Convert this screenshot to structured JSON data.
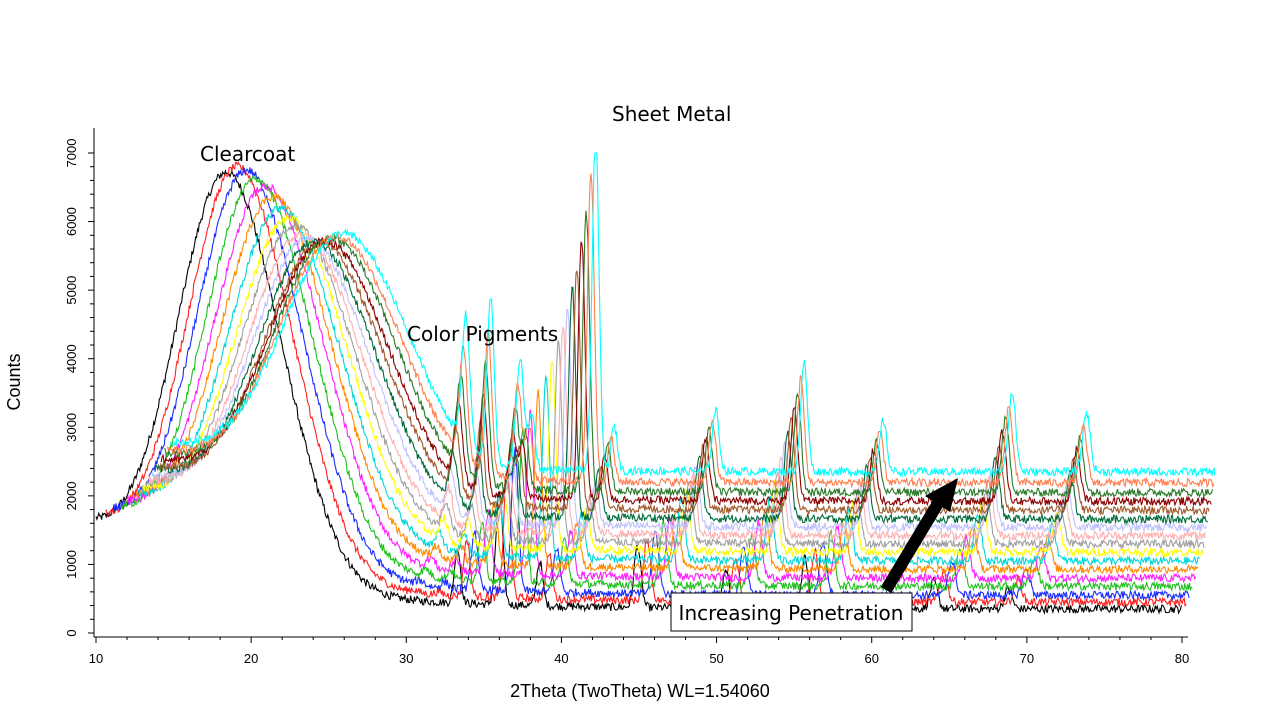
{
  "chart_data": {
    "type": "line",
    "title": "",
    "xlabel": "2Theta (TwoTheta) WL=1.54060",
    "ylabel": "Counts",
    "xlim": [
      10,
      80
    ],
    "ylim": [
      0,
      7000
    ],
    "x_ticks": [
      "10",
      "20",
      "30",
      "40",
      "50",
      "60",
      "70",
      "80"
    ],
    "y_ticks": [
      "0",
      "1000",
      "2000",
      "3000",
      "4000",
      "5000",
      "6000",
      "7000"
    ],
    "grid": false,
    "legend": "none",
    "layout": "waterfall, each successive series offset right and up",
    "annotations": {
      "clearcoat": "Clearcoat",
      "color_pigments": "Color Pigments",
      "sheet_metal": "Sheet Metal",
      "increasing_penetration": "Increasing Penetration"
    },
    "series_colors": [
      "#000000",
      "#ff2020",
      "#1a2cff",
      "#20c020",
      "#ff20ff",
      "#ff8a00",
      "#00d8d8",
      "#ffff00",
      "#a0a0a0",
      "#ffb0b0",
      "#c0c0ff",
      "#006b3c",
      "#a05a2c",
      "#8b0000",
      "#2a7a2a",
      "#ff7f50",
      "#00ffff"
    ],
    "series_params": {
      "x_start": [
        10.0,
        10.6,
        11.1,
        11.6,
        12.0,
        12.4,
        12.7,
        13.0,
        13.2,
        13.4,
        13.6,
        13.8,
        14.0,
        14.2,
        14.4,
        14.6,
        14.8
      ],
      "baseline_end": [
        350,
        450,
        550,
        680,
        800,
        930,
        1050,
        1180,
        1300,
        1420,
        1540,
        1660,
        1790,
        1920,
        2050,
        2190,
        2350
      ],
      "clearcoat_peak_x": [
        18.3,
        19.0,
        19.6,
        20.2,
        20.8,
        21.3,
        21.8,
        22.3,
        22.7,
        23.1,
        23.5,
        23.9,
        24.3,
        24.6,
        25.0,
        25.3,
        25.7
      ],
      "clearcoat_peak_y": [
        6600,
        6700,
        6650,
        6550,
        6450,
        6300,
        6150,
        6000,
        5900,
        5800,
        5750,
        5700,
        5700,
        5750,
        5800,
        5850,
        5900
      ],
      "pigment_peak_y": [
        0,
        100,
        200,
        300,
        400,
        500,
        700,
        900,
        1100,
        1400,
        1700,
        2000,
        2600,
        3200,
        3900,
        4600,
        5300
      ],
      "sheet_metal_peak_x": [
        36.0,
        36.5,
        37.0,
        37.5,
        38.0,
        38.5,
        39.0,
        39.4,
        39.8,
        40.1,
        40.4,
        40.7,
        41.0,
        41.3,
        41.6,
        41.9,
        42.2
      ],
      "sheet_metal_peak_y": [
        2000,
        2300,
        2600,
        2900,
        3200,
        3450,
        3700,
        3950,
        4200,
        4450,
        4700,
        5000,
        5300,
        5700,
        6100,
        6700,
        7300
      ]
    }
  }
}
